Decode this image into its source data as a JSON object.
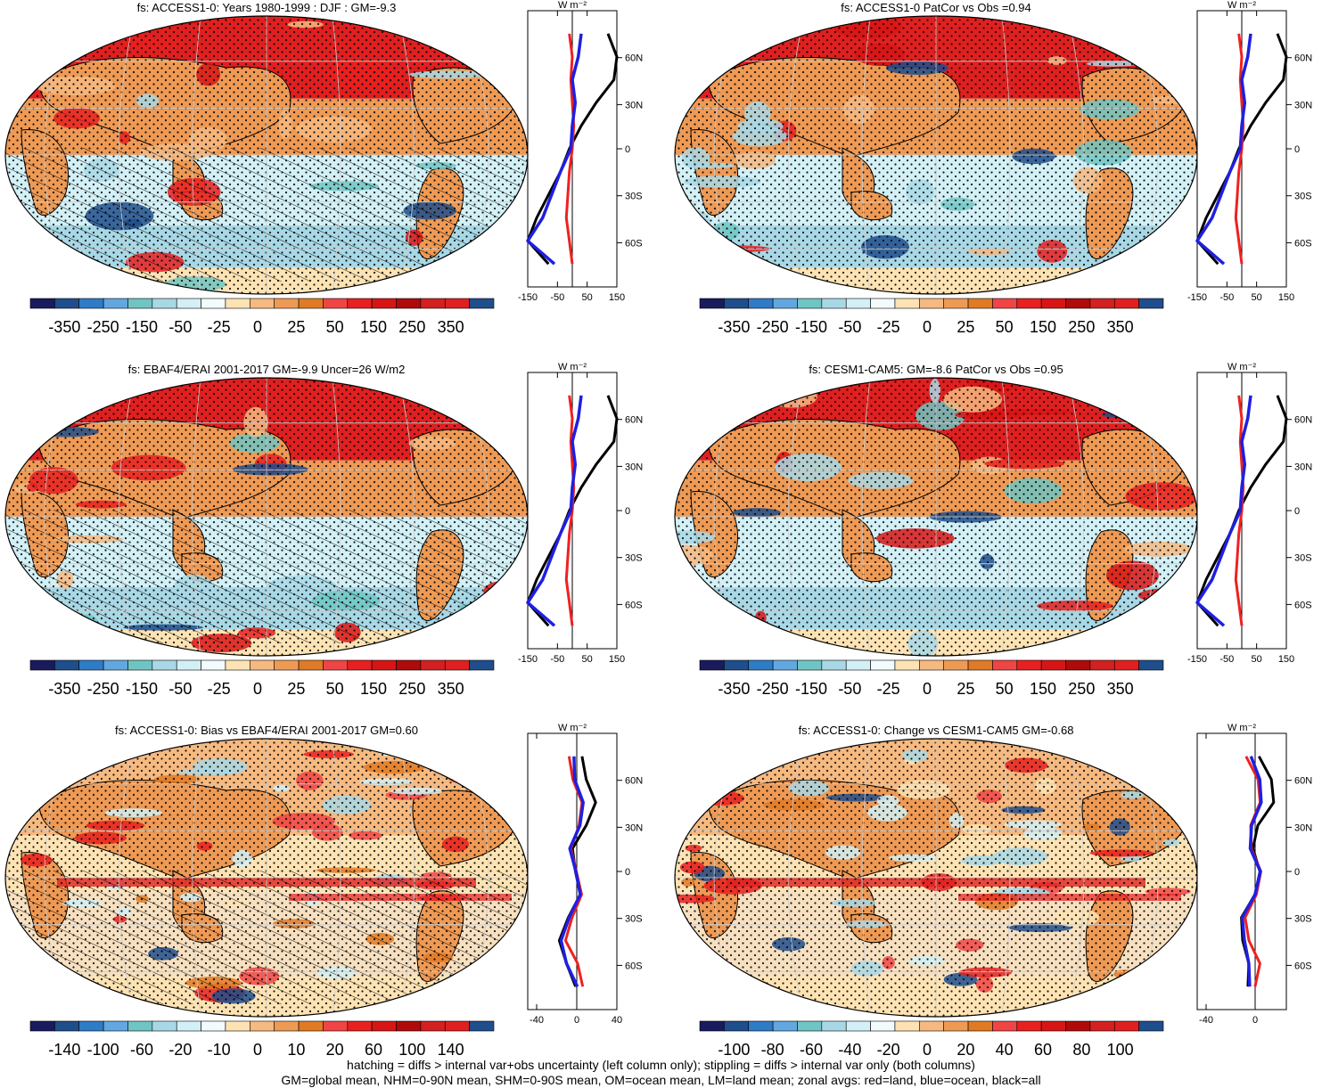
{
  "palette": [
    "#1a1a5e",
    "#1f4e8c",
    "#2f7cc6",
    "#62a7e0",
    "#6fc5c3",
    "#a8d8e6",
    "#d2f0f6",
    "#f2fbfd",
    "#fde3b4",
    "#f6b980",
    "#ee9a55",
    "#e07a25",
    "#f04545",
    "#e82020",
    "#d81515",
    "#b00a0a",
    "#d32020",
    "#e02020",
    "#1f4e8c"
  ],
  "panels": [
    {
      "title": "fs: ACCESS1-0: Years 1980-1999 : DJF : GM=-9.3",
      "cbar_labels": [
        "-350",
        "-250",
        "-150",
        "-50",
        "-25",
        "0",
        "25",
        "50",
        "150",
        "250",
        "350"
      ],
      "zonal_ticks": [
        "-150",
        "-50",
        "50",
        "150"
      ],
      "lat_labels": [
        "60N",
        "30N",
        "0",
        "30S",
        "60S"
      ],
      "unit": "W m⁻²",
      "hatch": true
    },
    {
      "title": "fs: ACCESS1-0 PatCor vs Obs =0.94",
      "cbar_labels": [
        "-350",
        "-250",
        "-150",
        "-50",
        "-25",
        "0",
        "25",
        "50",
        "150",
        "250",
        "350"
      ],
      "zonal_ticks": [
        "-150",
        "-50",
        "50",
        "150"
      ],
      "lat_labels": [
        "60N",
        "30N",
        "0",
        "30S",
        "60S"
      ],
      "unit": "W m⁻²",
      "hatch": false
    },
    {
      "title": "fs: EBAF4/ERAI 2001-2017 GM=-9.9 Uncer=26 W/m2",
      "cbar_labels": [
        "-350",
        "-250",
        "-150",
        "-50",
        "-25",
        "0",
        "25",
        "50",
        "150",
        "250",
        "350"
      ],
      "zonal_ticks": [
        "-150",
        "-50",
        "50",
        "150"
      ],
      "lat_labels": [
        "60N",
        "30N",
        "0",
        "30S",
        "60S"
      ],
      "unit": "W m⁻²",
      "hatch": true
    },
    {
      "title": "fs: CESM1-CAM5: GM=-8.6 PatCor vs Obs =0.95",
      "cbar_labels": [
        "-350",
        "-250",
        "-150",
        "-50",
        "-25",
        "0",
        "25",
        "50",
        "150",
        "250",
        "350"
      ],
      "zonal_ticks": [
        "-150",
        "-50",
        "50",
        "150"
      ],
      "lat_labels": [
        "60N",
        "30N",
        "0",
        "30S",
        "60S"
      ],
      "unit": "W m⁻²",
      "hatch": false
    },
    {
      "title": "fs: ACCESS1-0: Bias vs EBAF4/ERAI 2001-2017 GM=0.60",
      "cbar_labels": [
        "-140",
        "-100",
        "-60",
        "-20",
        "-10",
        "0",
        "10",
        "20",
        "60",
        "100",
        "140"
      ],
      "zonal_ticks": [
        "-40",
        "0",
        "40"
      ],
      "lat_labels": [
        "60N",
        "30N",
        "0",
        "30S",
        "60S"
      ],
      "unit": "W m⁻²",
      "hatch": true
    },
    {
      "title": "fs: ACCESS1-0: Change vs CESM1-CAM5 GM=-0.68",
      "cbar_labels": [
        "-100",
        "-80",
        "-60",
        "-40",
        "-20",
        "0",
        "20",
        "40",
        "60",
        "80",
        "100"
      ],
      "zonal_ticks": [
        "-40",
        "0"
      ],
      "lat_labels": [
        "60N",
        "30N",
        "0",
        "30S",
        "60S"
      ],
      "unit": "W m⁻²",
      "hatch": false
    }
  ],
  "footer": {
    "line1": "hatching = diffs > internal var+obs uncertainty (left column only); stippling = diffs > internal var only (both columns)",
    "line2": "GM=global mean, NHM=0-90N mean, SHM=0-90S mean, OM=ocean mean, LM=land mean; zonal avgs: red=land, blue=ocean, black=all"
  },
  "chart_data": [
    {
      "type": "heatmap",
      "title": "fs: ACCESS1-0: Years 1980-1999 : DJF : GM=-9.3",
      "colorbar": [
        -350,
        -250,
        -150,
        -50,
        -25,
        0,
        25,
        50,
        150,
        250,
        350
      ]
    },
    {
      "type": "line",
      "title": "",
      "ylabel": "",
      "series_colors": {
        "land": "red",
        "ocean": "blue",
        "all": "black"
      },
      "lat": [
        75,
        60,
        45,
        30,
        15,
        0,
        -15,
        -30,
        -45,
        -60,
        -75
      ],
      "series": [
        {
          "values": [
            30,
            20,
            0,
            10,
            0,
            -5,
            -40,
            -70,
            -100,
            -150,
            -60
          ]
        },
        {
          "values": [
            120,
            150,
            140,
            80,
            30,
            -10,
            -40,
            -80,
            -120,
            -150,
            -80
          ]
        },
        {
          "values": [
            -10,
            0,
            -5,
            0,
            5,
            0,
            -10,
            -15,
            -20,
            -10,
            0
          ]
        }
      ]
    },
    {
      "type": "heatmap",
      "title": "fs: ACCESS1-0 PatCor vs Obs =0.94",
      "colorbar": [
        -350,
        -250,
        -150,
        -50,
        -25,
        0,
        25,
        50,
        150,
        250,
        350
      ]
    },
    {
      "type": "heatmap",
      "title": "fs: EBAF4/ERAI 2001-2017 GM=-9.9 Uncer=26 W/m2",
      "colorbar": [
        -350,
        -250,
        -150,
        -50,
        -25,
        0,
        25,
        50,
        150,
        250,
        350
      ]
    },
    {
      "type": "heatmap",
      "title": "fs: CESM1-CAM5: GM=-8.6 PatCor vs Obs =0.95",
      "colorbar": [
        -350,
        -250,
        -150,
        -50,
        -25,
        0,
        25,
        50,
        150,
        250,
        350
      ]
    },
    {
      "type": "heatmap",
      "title": "fs: ACCESS1-0: Bias vs EBAF4/ERAI 2001-2017 GM=0.60",
      "colorbar": [
        -140,
        -100,
        -60,
        -20,
        -10,
        0,
        10,
        20,
        60,
        100,
        140
      ]
    },
    {
      "type": "heatmap",
      "title": "fs: ACCESS1-0: Change vs CESM1-CAM5 GM=-0.68",
      "colorbar": [
        -100,
        -80,
        -60,
        -40,
        -20,
        0,
        20,
        40,
        60,
        80,
        100
      ]
    }
  ]
}
